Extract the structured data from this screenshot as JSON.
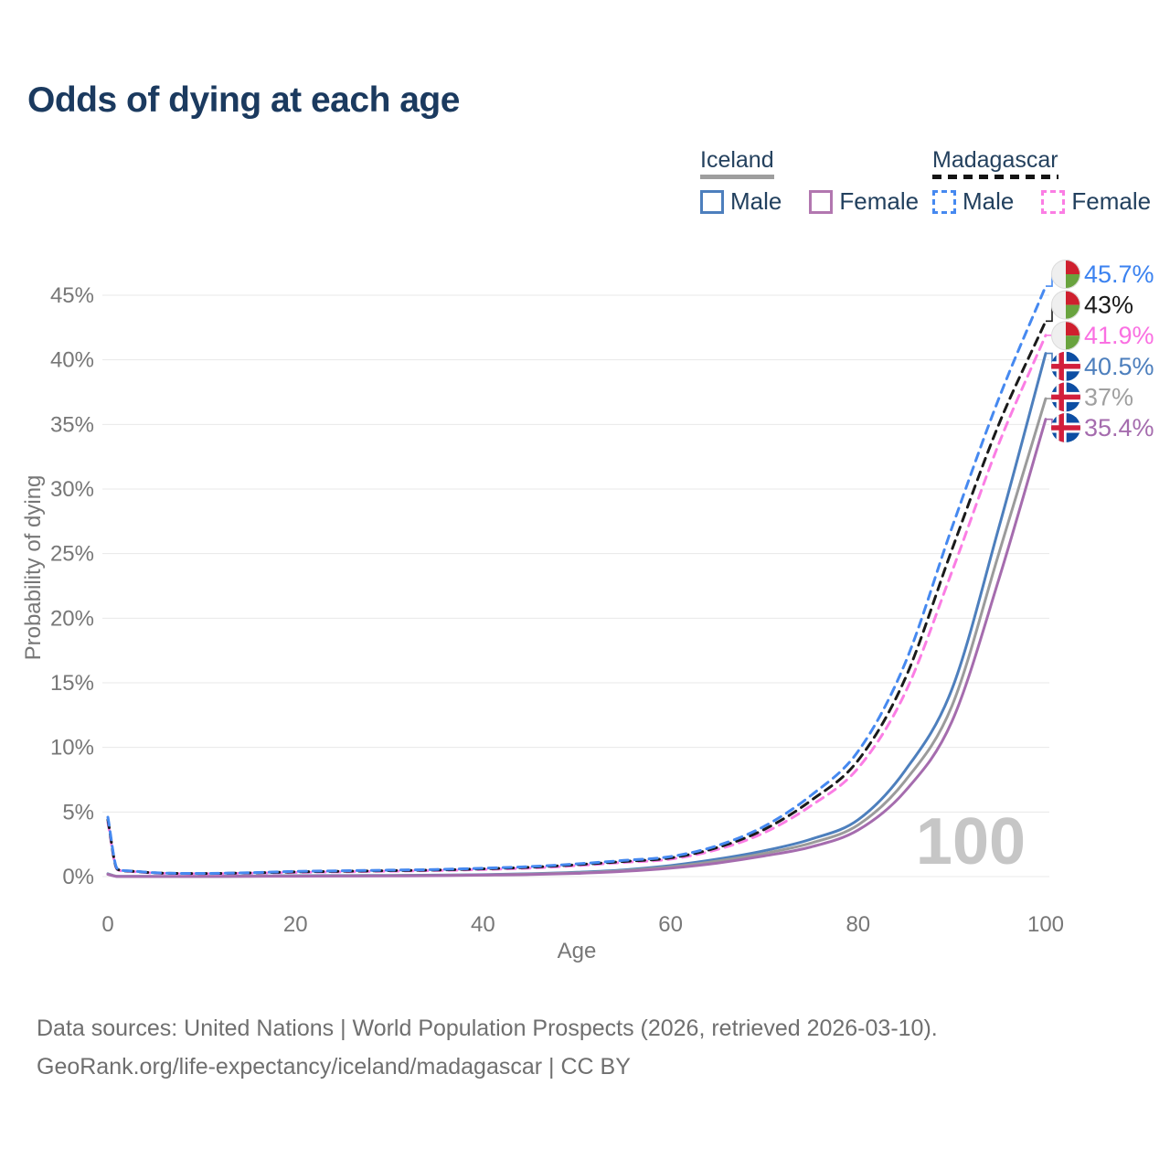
{
  "title": "Odds of dying at each age",
  "legend": {
    "groups": [
      {
        "name": "Iceland",
        "line_style": "solid",
        "line_color": "#9e9e9e",
        "items": [
          {
            "label": "Male",
            "color": "#4d7fbd"
          },
          {
            "label": "Female",
            "color": "#b277b0"
          }
        ]
      },
      {
        "name": "Madagascar",
        "line_style": "dashed",
        "line_color": "#141414",
        "items": [
          {
            "label": "Male",
            "color": "#4689f0"
          },
          {
            "label": "Female",
            "color": "#fb7de4"
          }
        ]
      }
    ]
  },
  "chart_data": {
    "type": "line",
    "title": "Odds of dying at each age",
    "xlabel": "Age",
    "ylabel": "Probability of dying",
    "xlim": [
      0,
      100
    ],
    "ylim": [
      0,
      47
    ],
    "x_ticks": [
      0,
      20,
      40,
      60,
      80,
      100
    ],
    "y_ticks": [
      0,
      5,
      10,
      15,
      20,
      25,
      30,
      35,
      40,
      45
    ],
    "y_tick_suffix": "%",
    "grid": true,
    "legend_position": "top-right",
    "age_watermark": "100",
    "ages": [
      0,
      1,
      2,
      5,
      10,
      15,
      20,
      25,
      30,
      35,
      40,
      45,
      50,
      55,
      60,
      65,
      70,
      75,
      80,
      85,
      90,
      95,
      100
    ],
    "series": [
      {
        "name": "Madagascar Male",
        "country": "Madagascar",
        "sex": "Male",
        "color": "#4689f0",
        "dashed": true,
        "flag": "madagascar",
        "end_label": "45.7%",
        "label_color": "#3b82f0",
        "values": [
          4.6,
          0.62,
          0.45,
          0.3,
          0.25,
          0.3,
          0.4,
          0.45,
          0.5,
          0.55,
          0.65,
          0.78,
          0.98,
          1.25,
          1.55,
          2.4,
          3.9,
          6.3,
          9.7,
          16.5,
          27.0,
          37.0,
          45.7
        ]
      },
      {
        "name": "Madagascar Both sexes",
        "country": "Madagascar",
        "sex": "Both",
        "color": "#1a1a1a",
        "dashed": true,
        "flag": "madagascar",
        "end_label": "43%",
        "label_color": "#1a1a1a",
        "values": [
          4.4,
          0.58,
          0.43,
          0.29,
          0.24,
          0.28,
          0.36,
          0.41,
          0.46,
          0.51,
          0.6,
          0.72,
          0.92,
          1.17,
          1.45,
          2.25,
          3.65,
          5.9,
          9.0,
          15.3,
          25.3,
          35.0,
          43.0
        ]
      },
      {
        "name": "Madagascar Female",
        "country": "Madagascar",
        "sex": "Female",
        "color": "#fb7de4",
        "dashed": true,
        "flag": "madagascar",
        "end_label": "41.9%",
        "label_color": "#fa70e2",
        "values": [
          4.2,
          0.55,
          0.41,
          0.27,
          0.22,
          0.26,
          0.32,
          0.37,
          0.42,
          0.47,
          0.55,
          0.66,
          0.85,
          1.1,
          1.35,
          2.1,
          3.4,
          5.5,
          8.4,
          14.2,
          23.6,
          33.5,
          41.9
        ]
      },
      {
        "name": "Iceland Male",
        "country": "Iceland",
        "sex": "Male",
        "color": "#4d7fbd",
        "dashed": false,
        "flag": "iceland",
        "end_label": "40.5%",
        "label_color": "#4d7fbd",
        "values": [
          0.22,
          0.02,
          0.02,
          0.01,
          0.01,
          0.04,
          0.07,
          0.08,
          0.09,
          0.11,
          0.15,
          0.22,
          0.33,
          0.52,
          0.85,
          1.35,
          2.0,
          2.9,
          4.4,
          8.2,
          14.5,
          27.0,
          40.5
        ]
      },
      {
        "name": "Iceland Both sexes",
        "country": "Iceland",
        "sex": "Both",
        "color": "#9b9b9b",
        "dashed": false,
        "flag": "iceland",
        "end_label": "37%",
        "label_color": "#a0a0a0",
        "values": [
          0.19,
          0.02,
          0.01,
          0.01,
          0.01,
          0.03,
          0.05,
          0.06,
          0.07,
          0.09,
          0.13,
          0.19,
          0.29,
          0.46,
          0.75,
          1.2,
          1.8,
          2.6,
          4.0,
          7.4,
          13.2,
          25.0,
          37.0
        ]
      },
      {
        "name": "Iceland Female",
        "country": "Iceland",
        "sex": "Female",
        "color": "#a56cae",
        "dashed": false,
        "flag": "iceland",
        "end_label": "35.4%",
        "label_color": "#a56cae",
        "values": [
          0.17,
          0.01,
          0.01,
          0.01,
          0.01,
          0.02,
          0.03,
          0.04,
          0.05,
          0.07,
          0.11,
          0.16,
          0.25,
          0.4,
          0.65,
          1.05,
          1.6,
          2.3,
          3.6,
          6.6,
          12.0,
          23.0,
          35.4
        ]
      }
    ],
    "flag_colors": {
      "madagascar": {
        "white": "#efefef",
        "red": "#cf1f2e",
        "green": "#69a33e"
      },
      "iceland": {
        "blue": "#0d4ea3",
        "white": "#ffffff",
        "red": "#d21f3c"
      }
    }
  },
  "footer": {
    "line1": "Data sources: United Nations | World Population Prospects (2026, retrieved 2026-03-10).",
    "line2": "GeoRank.org/life-expectancy/iceland/madagascar | CC BY"
  }
}
